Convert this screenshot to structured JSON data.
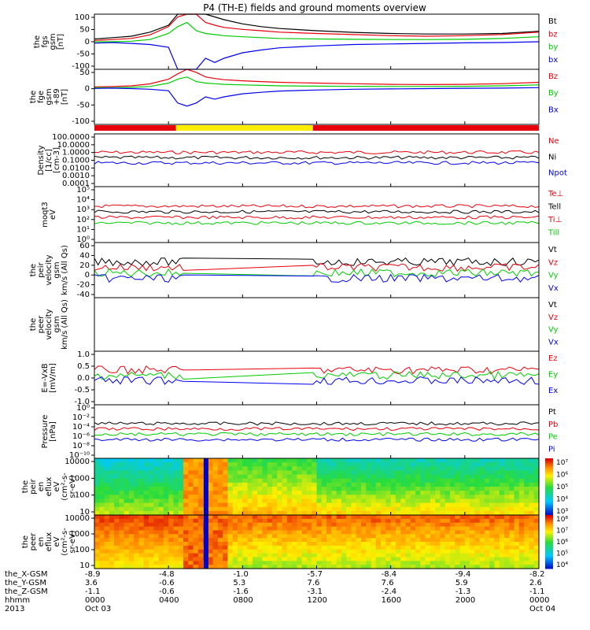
{
  "title": "P4 (TH-E) fields and ground moments overview",
  "colors": {
    "black": "#000000",
    "red": "#e8000b",
    "green": "#00cc00",
    "blue": "#0000ee",
    "yellow": "#ffee00",
    "gray": "#888888"
  },
  "chart_data": {
    "type": "line",
    "title": "P4 (TH-E) fields and ground moments overview",
    "x_range": [
      "2013-10-03 00:00",
      "2013-10-04 00:00"
    ],
    "time_ticks": [
      "0000",
      "0400",
      "0800",
      "1200",
      "1600",
      "2000",
      "0000"
    ],
    "date_labels": [
      "Oct 03",
      "",
      "",
      "",
      "",
      "",
      "Oct 04"
    ],
    "footer_rows": [
      {
        "label": "the_X-GSM",
        "values": [
          "-8.9",
          "-4.8",
          "-1.0",
          "-5.7",
          "-8.4",
          "-9.4",
          "-8.2"
        ]
      },
      {
        "label": "the_Y-GSM",
        "values": [
          "3.6",
          "-0.6",
          "5.3",
          "7.6",
          "7.6",
          "5.9",
          "2.6"
        ]
      },
      {
        "label": "the_Z-GSM",
        "values": [
          "-1.1",
          "-0.6",
          "-1.6",
          "-3.1",
          "-2.4",
          "-1.3",
          "-1.1"
        ]
      },
      {
        "label": "hhmm",
        "values": [
          "0000",
          "0400",
          "0800",
          "1200",
          "1600",
          "2000",
          "0000"
        ]
      },
      {
        "label": "2013",
        "values": [
          "Oct 03",
          "",
          "",
          "",
          "",
          "",
          "Oct 04"
        ]
      }
    ],
    "panels": [
      {
        "ylabel": [
          "the",
          "fgs",
          "gsm",
          "[nT]"
        ],
        "ylim": [
          -100,
          100
        ],
        "log": false,
        "yticks": [
          "100",
          "50",
          "0",
          "-50",
          "-100"
        ],
        "legend": [
          {
            "name": "Bt",
            "color": "black"
          },
          {
            "name": "bz",
            "color": "red"
          },
          {
            "name": "by",
            "color": "green"
          },
          {
            "name": "bx",
            "color": "blue"
          }
        ]
      },
      {
        "ylabel": [
          "the",
          "fge",
          "gsm",
          "+89",
          "[nT]"
        ],
        "ylim": [
          -120,
          60
        ],
        "log": false,
        "yticks": [
          "50",
          "0",
          "-50",
          "-100"
        ],
        "legend": [
          {
            "name": "Bz",
            "color": "red"
          },
          {
            "name": "By",
            "color": "green"
          },
          {
            "name": "Bx",
            "color": "blue"
          }
        ]
      },
      {
        "ylabel": [
          "Density",
          "[1/cc]",
          "[cm-3]"
        ],
        "ylim": [
          0.0001,
          100
        ],
        "log": true,
        "yticks": [
          "100.0000",
          "10.0000",
          "1.0000",
          "0.1000",
          "0.0100",
          "0.0010",
          "0.0001"
        ],
        "legend": [
          {
            "name": "Ne",
            "color": "red"
          },
          {
            "name": "Ni",
            "color": "black"
          },
          {
            "name": "Npot",
            "color": "blue"
          }
        ]
      },
      {
        "ylabel": [
          "moqt3",
          "eV"
        ],
        "ylim": [
          1,
          100000
        ],
        "log": true,
        "yticks": [
          "10⁵",
          "10⁴",
          "10³",
          "10²",
          "10¹",
          "10⁰"
        ],
        "legend": [
          {
            "name": "Te⊥",
            "color": "red"
          },
          {
            "name": "Tell",
            "color": "black"
          },
          {
            "name": "Ti⊥",
            "color": "red"
          },
          {
            "name": "Till",
            "color": "green"
          }
        ]
      },
      {
        "ylabel": [
          "the",
          "peir",
          "velocity",
          "gsm",
          "km/s (All Qs)"
        ],
        "ylim": [
          -40,
          60
        ],
        "log": false,
        "yticks": [
          "60",
          "40",
          "20",
          "0",
          "-20",
          "-40"
        ],
        "legend": [
          {
            "name": "Vt",
            "color": "black"
          },
          {
            "name": "Vz",
            "color": "red"
          },
          {
            "name": "Vy",
            "color": "green"
          },
          {
            "name": "Vx",
            "color": "blue"
          }
        ]
      },
      {
        "ylabel": [
          "the",
          "peer",
          "velocity",
          "gsm",
          "km/s (All Qs)"
        ],
        "ylim": null,
        "log": false,
        "yticks": [],
        "legend": [
          {
            "name": "Vt",
            "color": "black"
          },
          {
            "name": "Vz",
            "color": "red"
          },
          {
            "name": "Vy",
            "color": "green"
          },
          {
            "name": "Vx",
            "color": "blue"
          }
        ]
      },
      {
        "ylabel": [
          "E=-VxB",
          "[mV/m]"
        ],
        "ylim": [
          -1.0,
          1.0
        ],
        "log": false,
        "yticks": [
          "1.0",
          "0.5",
          "0.0",
          "-0.5",
          "-1.0"
        ],
        "legend": [
          {
            "name": "Ez",
            "color": "red"
          },
          {
            "name": "Ey",
            "color": "green"
          },
          {
            "name": "Ex",
            "color": "blue"
          }
        ]
      },
      {
        "ylabel": [
          "Pressure",
          "[nPa]"
        ],
        "ylim": [
          1e-10,
          10
        ],
        "log": true,
        "yticks": [
          "10⁰",
          "10⁻²",
          "10⁻⁴",
          "10⁻⁶",
          "10⁻⁸",
          "10⁻¹⁰"
        ],
        "legend": [
          {
            "name": "Pt",
            "color": "black"
          },
          {
            "name": "Pb",
            "color": "red"
          },
          {
            "name": "Pe",
            "color": "green"
          },
          {
            "name": "Pi",
            "color": "blue"
          }
        ]
      },
      {
        "ylabel": [
          "the",
          "peir",
          "en",
          "eflux",
          "eV",
          "(cm²-s-",
          "sr-eV)"
        ],
        "ylim": [
          10,
          20000
        ],
        "log": true,
        "yticks": [
          "10000",
          "1000",
          "100",
          "10"
        ],
        "colorbar": {
          "labels": [
            "10⁷",
            "10⁶",
            "10⁵",
            "10⁴",
            "10³"
          ],
          "range": [
            1000,
            10000000
          ]
        }
      },
      {
        "ylabel": [
          "the",
          "peer",
          "en",
          "eflux",
          "eV",
          "(cm²-s-",
          "sr-eV)"
        ],
        "ylim": [
          10,
          20000
        ],
        "log": true,
        "yticks": [
          "10000",
          "1000",
          "100",
          "10"
        ],
        "colorbar": {
          "labels": [
            "10⁸",
            "10⁷",
            "10⁶",
            "10⁵",
            "10⁴"
          ],
          "range": [
            10000,
            100000000
          ]
        }
      }
    ],
    "bx_series_hours": [
      0,
      1,
      2,
      3,
      4,
      4.5,
      5,
      5.5,
      6,
      6.5,
      7,
      8,
      9,
      10,
      12,
      14,
      16,
      18,
      20,
      22,
      24
    ],
    "bx_series_nT": [
      -5,
      -3,
      -6,
      -10,
      -20,
      -100,
      -120,
      -100,
      -60,
      -75,
      -60,
      -40,
      -30,
      -22,
      -15,
      -10,
      -8,
      -6,
      -4,
      -3,
      0
    ],
    "bt_series_nT": [
      10,
      15,
      20,
      35,
      60,
      110,
      160,
      150,
      110,
      90,
      80,
      65,
      55,
      48,
      40,
      34,
      30,
      28,
      28,
      30,
      38
    ],
    "bz_series_nT": [
      5,
      8,
      12,
      25,
      55,
      90,
      120,
      100,
      70,
      60,
      52,
      45,
      40,
      35,
      30,
      26,
      22,
      20,
      22,
      26,
      35
    ],
    "by_series_nT": [
      0,
      0,
      2,
      8,
      30,
      55,
      70,
      40,
      30,
      26,
      22,
      18,
      15,
      12,
      10,
      9,
      8,
      8,
      9,
      12,
      18
    ]
  }
}
